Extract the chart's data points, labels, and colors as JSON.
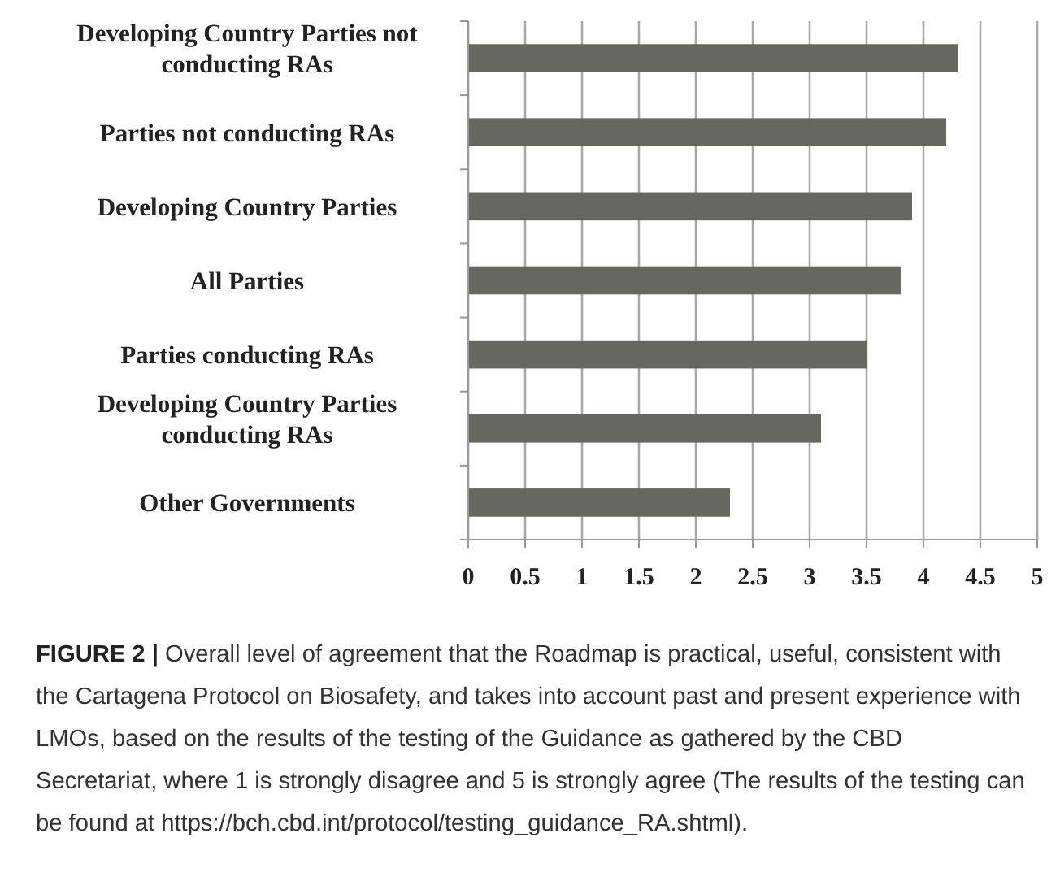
{
  "chart_data": {
    "type": "bar",
    "orientation": "horizontal",
    "categories": [
      "Developing Country Parties not conducting RAs",
      "Parties not conducting RAs",
      "Developing Country Parties",
      "All Parties",
      "Parties conducting RAs",
      "Developing Country Parties conducting RAs",
      "Other Governments"
    ],
    "values": [
      4.3,
      4.2,
      3.9,
      3.8,
      3.5,
      3.1,
      2.3
    ],
    "color": "#676762",
    "xlim": [
      0,
      5
    ],
    "xticks": [
      0,
      0.5,
      1,
      1.5,
      2,
      2.5,
      3,
      3.5,
      4,
      4.5,
      5
    ],
    "grid": "x",
    "annotations": [
      "FIGURE 2 | Overall level of agreement that the Roadmap is practical, useful, consistent with the Cartagena Protocol on Biosafety, and takes into account past and present experience with LMOs, based on the results of the testing of the Guidance as gathered by the CBD Secretariat, where 1 is strongly disagree and 5 is strongly agree (The results of the testing can be found at https://bch.cbd.int/protocol/testing_guidance_RA.shtml)."
    ]
  }
}
